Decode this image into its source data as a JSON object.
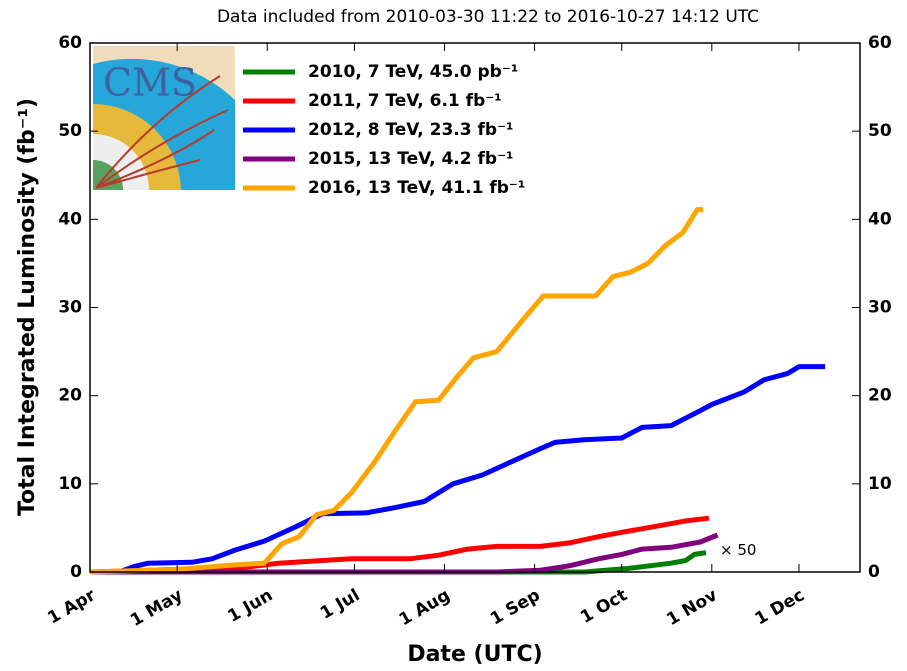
{
  "chart_data": {
    "type": "line",
    "title": "Data included from 2010-03-30 11:22 to 2016-10-27 14:12 UTC",
    "xlabel": "Date (UTC)",
    "ylabel": "Total Integrated Luminosity (fb⁻¹)",
    "logo_text": "CMS",
    "annotation": "× 50",
    "xlim": [
      0,
      265
    ],
    "xticks": [
      {
        "value": 0,
        "label": "1 Apr"
      },
      {
        "value": 30,
        "label": "1 May"
      },
      {
        "value": 61,
        "label": "1 Jun"
      },
      {
        "value": 91,
        "label": "1 Jul"
      },
      {
        "value": 122,
        "label": "1 Aug"
      },
      {
        "value": 153,
        "label": "1 Sep"
      },
      {
        "value": 183,
        "label": "1 Oct"
      },
      {
        "value": 214,
        "label": "1 Nov"
      },
      {
        "value": 244,
        "label": "1 Dec"
      }
    ],
    "ylim": [
      0,
      60
    ],
    "yticks": [
      0,
      10,
      20,
      30,
      40,
      50,
      60
    ],
    "y2lim": [
      0,
      60
    ],
    "y2ticks": [
      0,
      10,
      20,
      30,
      40,
      50,
      60
    ],
    "legend": "upper left",
    "series": [
      {
        "name": "2010, 7 TeV, 45.0 pb⁻¹",
        "color": "#008000",
        "x": [
          0,
          170,
          185,
          200,
          205,
          208,
          212
        ],
        "values": [
          0,
          0,
          0.4,
          1.0,
          1.3,
          2.0,
          2.2
        ]
      },
      {
        "name": "2011, 7 TeV, 6.1 fb⁻¹",
        "color": "#ff0000",
        "x": [
          0,
          30,
          55,
          65,
          80,
          90,
          110,
          120,
          130,
          140,
          155,
          165,
          175,
          183,
          195,
          205,
          213
        ],
        "values": [
          0,
          0.3,
          0.6,
          1.0,
          1.3,
          1.5,
          1.5,
          1.9,
          2.6,
          2.9,
          2.9,
          3.3,
          4.0,
          4.5,
          5.2,
          5.8,
          6.1
        ]
      },
      {
        "name": "2012, 8 TeV, 23.3 fb⁻¹",
        "color": "#0000ff",
        "x": [
          0,
          10,
          15,
          20,
          35,
          42,
          50,
          60,
          70,
          80,
          95,
          105,
          115,
          125,
          135,
          145,
          155,
          160,
          170,
          183,
          190,
          200,
          210,
          214,
          225,
          232,
          240,
          244,
          253
        ],
        "values": [
          0,
          0,
          0.6,
          1.0,
          1.1,
          1.5,
          2.5,
          3.5,
          5.0,
          6.6,
          6.7,
          7.3,
          8.0,
          10.0,
          11.0,
          12.5,
          14.0,
          14.7,
          15.0,
          15.2,
          16.4,
          16.6,
          18.3,
          19.0,
          20.4,
          21.8,
          22.5,
          23.3,
          23.3
        ]
      },
      {
        "name": "2015, 13 TeV, 4.2 fb⁻¹",
        "color": "#800080",
        "x": [
          0,
          140,
          155,
          165,
          175,
          183,
          190,
          200,
          210,
          216
        ],
        "values": [
          0,
          0,
          0.2,
          0.7,
          1.5,
          2.0,
          2.6,
          2.8,
          3.4,
          4.2
        ]
      },
      {
        "name": "2016, 13 TeV, 41.1 fb⁻¹",
        "color": "#ffa500",
        "x": [
          0,
          30,
          50,
          60,
          66,
          72,
          78,
          84,
          90,
          98,
          105,
          112,
          120,
          126,
          132,
          140,
          150,
          156,
          174,
          180,
          186,
          192,
          198,
          204,
          209,
          211
        ],
        "values": [
          0,
          0.3,
          0.8,
          1.0,
          3.2,
          4.0,
          6.5,
          7.0,
          9.0,
          12.5,
          16.0,
          19.3,
          19.5,
          22.0,
          24.3,
          25.0,
          29.0,
          31.3,
          31.3,
          33.5,
          34.0,
          35.0,
          37.0,
          38.5,
          41.1,
          41.1
        ]
      }
    ]
  }
}
